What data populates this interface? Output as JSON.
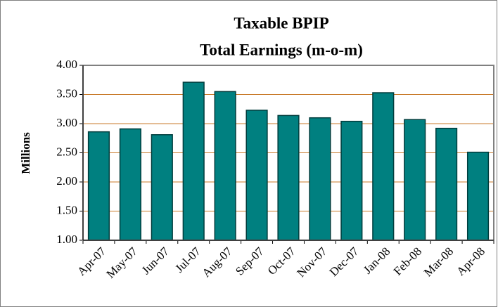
{
  "chart_data": {
    "type": "bar",
    "title": "Taxable BPIP",
    "subtitle": "Total Earnings (m-o-m)",
    "y_label": "Millions",
    "categories": [
      "Apr-07",
      "May-07",
      "Jun-07",
      "Jul-07",
      "Aug-07",
      "Sep-07",
      "Oct-07",
      "Nov-07",
      "Dec-07",
      "Jan-08",
      "Feb-08",
      "Mar-08",
      "Apr-08"
    ],
    "values": [
      2.86,
      2.91,
      2.81,
      3.71,
      3.55,
      3.23,
      3.14,
      3.1,
      3.04,
      3.53,
      3.07,
      2.92,
      2.51
    ],
    "color": "#008080",
    "ylim": [
      1,
      4
    ],
    "yticks": [
      {
        "value": 1,
        "label": "1.00"
      },
      {
        "value": 1.5,
        "label": "1.50"
      },
      {
        "value": 2,
        "label": "2.00"
      },
      {
        "value": 2.5,
        "label": "2.50"
      },
      {
        "value": 3,
        "label": "3.00"
      },
      {
        "value": 3.5,
        "label": "3.50"
      },
      {
        "value": 4,
        "label": "4.00"
      }
    ],
    "grid": true
  }
}
